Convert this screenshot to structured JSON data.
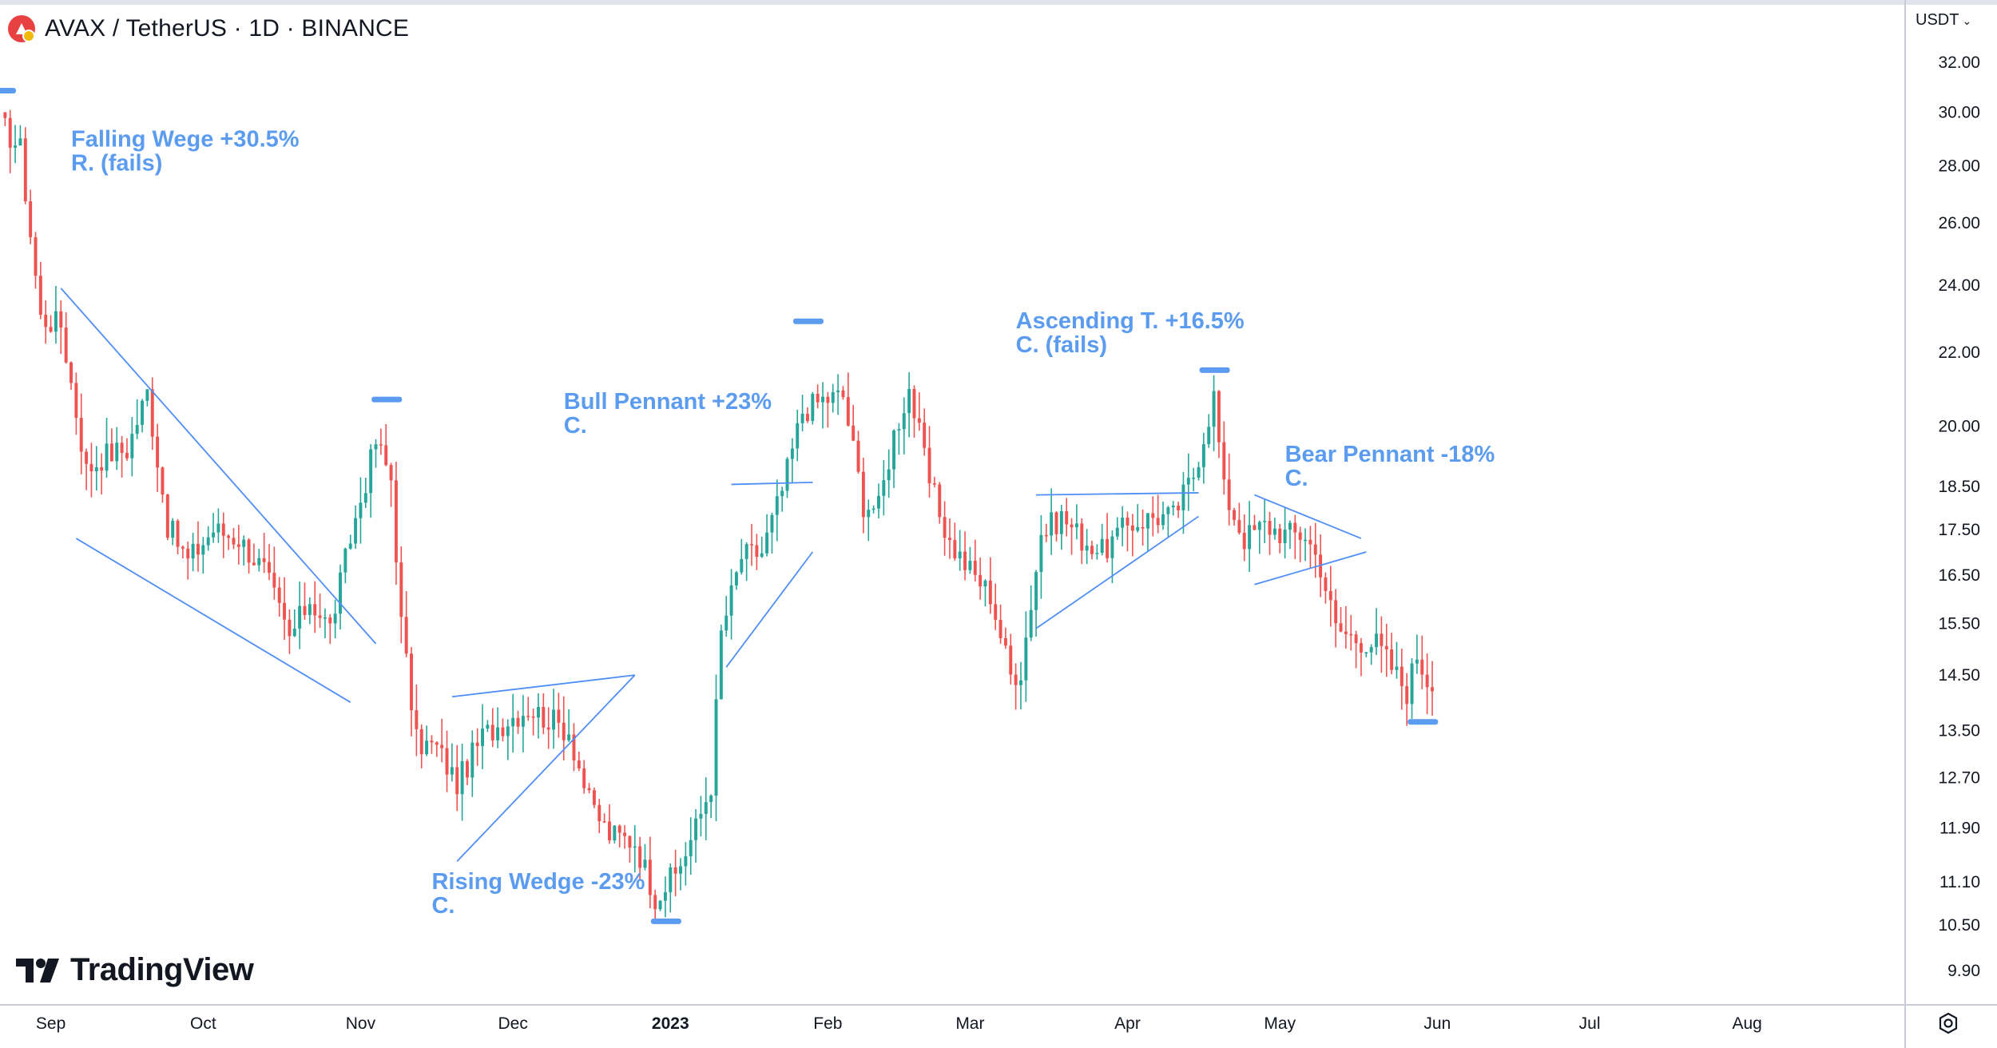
{
  "header": {
    "title": "AVAX / TetherUS · 1D · BINANCE",
    "logo_icon": "avax-logo-icon"
  },
  "toolbar": {
    "currency_label": "USDT",
    "currency_icon": "chevron-down-icon",
    "settings_icon": "settings-icon"
  },
  "brand": {
    "text": "TradingView",
    "icon": "tradingview-logo-icon"
  },
  "colors": {
    "up": "#26a69a",
    "down": "#ef5350",
    "annotation": "#5b9cf0",
    "trendline": "#4f8ef7",
    "axis_text": "#131722",
    "grid": "none"
  },
  "chart_data": {
    "type": "candlestick",
    "symbol": "AVAX / TetherUS",
    "interval": "1D",
    "exchange": "BINANCE",
    "y_scale": "log",
    "ylim": [
      9.5,
      33.5
    ],
    "y_ticks": [
      32.0,
      30.0,
      28.0,
      26.0,
      24.0,
      22.0,
      20.0,
      18.5,
      17.5,
      16.5,
      15.5,
      14.5,
      13.5,
      12.7,
      11.9,
      11.1,
      10.5,
      9.9
    ],
    "x_range": [
      "2022-08-22",
      "2023-08-20"
    ],
    "x_ticks": [
      {
        "date": "2022-09-01",
        "label": "Sep",
        "bold": false
      },
      {
        "date": "2022-10-01",
        "label": "Oct",
        "bold": false
      },
      {
        "date": "2022-11-01",
        "label": "Nov",
        "bold": false
      },
      {
        "date": "2022-12-01",
        "label": "Dec",
        "bold": false
      },
      {
        "date": "2023-01-01",
        "label": "2023",
        "bold": true
      },
      {
        "date": "2023-02-01",
        "label": "Feb",
        "bold": false
      },
      {
        "date": "2023-03-01",
        "label": "Mar",
        "bold": false
      },
      {
        "date": "2023-04-01",
        "label": "Apr",
        "bold": false
      },
      {
        "date": "2023-05-01",
        "label": "May",
        "bold": false
      },
      {
        "date": "2023-06-01",
        "label": "Jun",
        "bold": false
      },
      {
        "date": "2023-07-01",
        "label": "Jul",
        "bold": false
      },
      {
        "date": "2023-08-01",
        "label": "Aug",
        "bold": false
      }
    ],
    "price_path_anchors": [
      [
        "2022-08-22",
        29.6
      ],
      [
        "2022-08-26",
        28.6
      ],
      [
        "2022-08-30",
        23.0
      ],
      [
        "2022-09-03",
        22.8
      ],
      [
        "2022-09-08",
        18.9
      ],
      [
        "2022-09-12",
        19.3
      ],
      [
        "2022-09-16",
        19.4
      ],
      [
        "2022-09-20",
        20.9
      ],
      [
        "2022-09-24",
        17.6
      ],
      [
        "2022-09-28",
        16.8
      ],
      [
        "2022-10-03",
        17.5
      ],
      [
        "2022-10-08",
        17.3
      ],
      [
        "2022-10-13",
        16.6
      ],
      [
        "2022-10-18",
        15.2
      ],
      [
        "2022-10-22",
        16.0
      ],
      [
        "2022-10-26",
        15.4
      ],
      [
        "2022-10-30",
        17.3
      ],
      [
        "2022-11-04",
        19.6
      ],
      [
        "2022-11-07",
        18.7
      ],
      [
        "2022-11-09",
        15.5
      ],
      [
        "2022-11-12",
        13.3
      ],
      [
        "2022-11-16",
        13.2
      ],
      [
        "2022-11-20",
        12.6
      ],
      [
        "2022-11-25",
        13.4
      ],
      [
        "2022-11-30",
        13.7
      ],
      [
        "2022-12-04",
        13.9
      ],
      [
        "2022-12-08",
        13.7
      ],
      [
        "2022-12-12",
        13.5
      ],
      [
        "2022-12-16",
        12.3
      ],
      [
        "2022-12-20",
        11.8
      ],
      [
        "2022-12-25",
        11.7
      ],
      [
        "2022-12-29",
        10.9
      ],
      [
        "2023-01-02",
        11.2
      ],
      [
        "2023-01-06",
        11.9
      ],
      [
        "2023-01-09",
        12.6
      ],
      [
        "2023-01-11",
        15.3
      ],
      [
        "2023-01-15",
        16.9
      ],
      [
        "2023-01-19",
        17.0
      ],
      [
        "2023-01-23",
        18.4
      ],
      [
        "2023-01-27",
        20.4
      ],
      [
        "2023-01-31",
        20.7
      ],
      [
        "2023-02-04",
        20.8
      ],
      [
        "2023-02-08",
        18.1
      ],
      [
        "2023-02-11",
        18.0
      ],
      [
        "2023-02-14",
        19.8
      ],
      [
        "2023-02-17",
        21.0
      ],
      [
        "2023-02-21",
        18.6
      ],
      [
        "2023-02-25",
        17.2
      ],
      [
        "2023-03-01",
        16.6
      ],
      [
        "2023-03-05",
        16.1
      ],
      [
        "2023-03-09",
        14.5
      ],
      [
        "2023-03-11",
        14.6
      ],
      [
        "2023-03-15",
        17.4
      ],
      [
        "2023-03-19",
        17.8
      ],
      [
        "2023-03-23",
        17.3
      ],
      [
        "2023-03-27",
        17.0
      ],
      [
        "2023-04-01",
        17.6
      ],
      [
        "2023-04-06",
        17.8
      ],
      [
        "2023-04-10",
        17.8
      ],
      [
        "2023-04-14",
        18.8
      ],
      [
        "2023-04-18",
        20.8
      ],
      [
        "2023-04-20",
        18.4
      ],
      [
        "2023-04-24",
        17.3
      ],
      [
        "2023-04-28",
        17.6
      ],
      [
        "2023-05-02",
        17.4
      ],
      [
        "2023-05-06",
        17.4
      ],
      [
        "2023-05-09",
        16.7
      ],
      [
        "2023-05-12",
        15.4
      ],
      [
        "2023-05-16",
        15.2
      ],
      [
        "2023-05-20",
        15.1
      ],
      [
        "2023-05-24",
        14.5
      ],
      [
        "2023-05-26",
        14.2
      ],
      [
        "2023-05-28",
        14.9
      ],
      [
        "2023-05-31",
        14.2
      ]
    ],
    "annotations": [
      {
        "id": "falling-wedge",
        "lines": [
          "Falling Wege +30.5%",
          "R. (fails)"
        ],
        "date": "2022-09-05",
        "price": 28.7
      },
      {
        "id": "rising-wedge",
        "lines": [
          "Rising Wedge -23%",
          "C."
        ],
        "date": "2022-11-15",
        "price": 11.0
      },
      {
        "id": "bull-pennant",
        "lines": [
          "Bull Pennant +23%",
          "C."
        ],
        "date": "2022-12-11",
        "price": 20.45
      },
      {
        "id": "ascending-triangle",
        "lines": [
          "Ascending T. +16.5%",
          "C. (fails)"
        ],
        "date": "2023-03-10",
        "price": 22.7
      },
      {
        "id": "bear-pennant",
        "lines": [
          "Bear Pennant -18%",
          "C."
        ],
        "date": "2023-05-02",
        "price": 19.1
      }
    ],
    "target_markers": [
      {
        "date": "2022-08-22",
        "price": 30.85
      },
      {
        "date": "2022-11-06",
        "price": 20.7
      },
      {
        "date": "2023-01-28",
        "price": 22.9
      },
      {
        "date": "2022-12-31",
        "price": 10.55
      },
      {
        "date": "2023-04-18",
        "price": 21.5
      },
      {
        "date": "2023-05-29",
        "price": 13.65
      }
    ],
    "trendlines": [
      {
        "from": [
          "2022-09-03",
          23.9
        ],
        "to": [
          "2022-11-04",
          15.1
        ]
      },
      {
        "from": [
          "2022-09-06",
          17.3
        ],
        "to": [
          "2022-10-30",
          14.0
        ]
      },
      {
        "from": [
          "2022-11-19",
          14.1
        ],
        "to": [
          "2022-12-25",
          14.5
        ]
      },
      {
        "from": [
          "2022-11-20",
          11.4
        ],
        "to": [
          "2022-12-25",
          14.5
        ]
      },
      {
        "from": [
          "2023-01-13",
          18.55
        ],
        "to": [
          "2023-01-29",
          18.6
        ]
      },
      {
        "from": [
          "2023-01-12",
          14.65
        ],
        "to": [
          "2023-01-29",
          17.0
        ]
      },
      {
        "from": [
          "2023-03-14",
          18.3
        ],
        "to": [
          "2023-04-15",
          18.35
        ]
      },
      {
        "from": [
          "2023-03-14",
          15.4
        ],
        "to": [
          "2023-04-15",
          17.8
        ]
      },
      {
        "from": [
          "2023-04-26",
          18.3
        ],
        "to": [
          "2023-05-17",
          17.3
        ]
      },
      {
        "from": [
          "2023-04-26",
          16.3
        ],
        "to": [
          "2023-05-18",
          17.0
        ]
      }
    ]
  }
}
